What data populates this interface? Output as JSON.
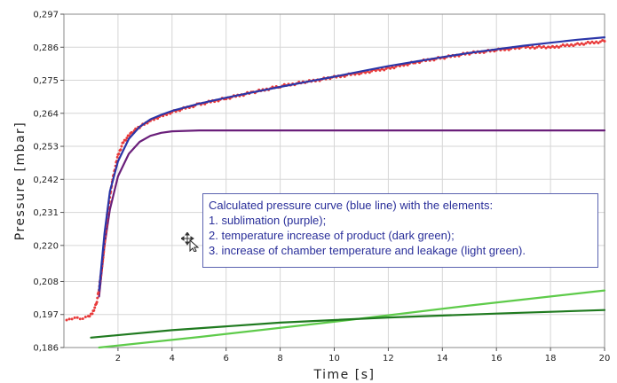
{
  "chart_data": {
    "type": "line",
    "title": "",
    "xlabel": "Time [s]",
    "ylabel": "Pressure [mbar]",
    "xlim": [
      0,
      20
    ],
    "ylim": [
      0.186,
      0.297
    ],
    "x_ticks": [
      "2",
      "4",
      "6",
      "8",
      "10",
      "12",
      "14",
      "16",
      "18",
      "20"
    ],
    "x_tick_values": [
      2,
      4,
      6,
      8,
      10,
      12,
      14,
      16,
      18,
      20
    ],
    "y_ticks": [
      "0,297",
      "0,286",
      "0,275",
      "0,264",
      "0,253",
      "0,242",
      "0,231",
      "0,220",
      "0,208",
      "0,197",
      "0,186"
    ],
    "y_tick_values": [
      0.297,
      0.286,
      0.275,
      0.264,
      0.253,
      0.242,
      0.231,
      0.22,
      0.208,
      0.197,
      0.186
    ],
    "grid": true,
    "series": [
      {
        "color": "#e83a3a",
        "style": "dots",
        "points": [
          [
            0.1,
            0.1955
          ],
          [
            0.3,
            0.1955
          ],
          [
            0.5,
            0.1956
          ],
          [
            0.7,
            0.1957
          ],
          [
            0.9,
            0.1962
          ],
          [
            1.05,
            0.1975
          ],
          [
            1.2,
            0.2005
          ],
          [
            1.3,
            0.2055
          ],
          [
            1.45,
            0.216
          ],
          [
            1.6,
            0.23
          ],
          [
            1.8,
            0.242
          ],
          [
            2.0,
            0.25
          ],
          [
            2.2,
            0.2545
          ],
          [
            2.5,
            0.2575
          ],
          [
            2.8,
            0.2595
          ],
          [
            3.2,
            0.2615
          ],
          [
            3.6,
            0.263
          ],
          [
            4.0,
            0.2645
          ],
          [
            5.0,
            0.267
          ],
          [
            6.0,
            0.269
          ],
          [
            7.0,
            0.271
          ],
          [
            8.0,
            0.273
          ],
          [
            9.0,
            0.2745
          ],
          [
            10.0,
            0.276
          ],
          [
            11.0,
            0.2775
          ],
          [
            12.0,
            0.279
          ],
          [
            13.0,
            0.281
          ],
          [
            14.0,
            0.2825
          ],
          [
            15.0,
            0.284
          ],
          [
            16.0,
            0.285
          ],
          [
            17.0,
            0.286
          ],
          [
            18.0,
            0.286
          ],
          [
            19.0,
            0.287
          ],
          [
            20.0,
            0.288
          ]
        ]
      },
      {
        "color": "#2b36a8",
        "style": "line",
        "points": [
          [
            1.3,
            0.205
          ],
          [
            1.5,
            0.224
          ],
          [
            1.7,
            0.238
          ],
          [
            2.0,
            0.248
          ],
          [
            2.4,
            0.2555
          ],
          [
            2.8,
            0.2595
          ],
          [
            3.2,
            0.262
          ],
          [
            3.6,
            0.2635
          ],
          [
            4.0,
            0.2648
          ],
          [
            5.0,
            0.2672
          ],
          [
            6.0,
            0.2692
          ],
          [
            7.0,
            0.271
          ],
          [
            8.0,
            0.2728
          ],
          [
            9.0,
            0.2745
          ],
          [
            10.0,
            0.2762
          ],
          [
            11.0,
            0.278
          ],
          [
            12.0,
            0.2797
          ],
          [
            13.0,
            0.2812
          ],
          [
            14.0,
            0.2827
          ],
          [
            15.0,
            0.2841
          ],
          [
            16.0,
            0.2853
          ],
          [
            17.0,
            0.2865
          ],
          [
            18.0,
            0.2875
          ],
          [
            19.0,
            0.2885
          ],
          [
            20.0,
            0.2893
          ]
        ]
      },
      {
        "color": "#6a1f7a",
        "style": "line",
        "points": [
          [
            1.3,
            0.203
          ],
          [
            1.5,
            0.22
          ],
          [
            1.7,
            0.232
          ],
          [
            2.0,
            0.243
          ],
          [
            2.4,
            0.2505
          ],
          [
            2.8,
            0.2545
          ],
          [
            3.2,
            0.2565
          ],
          [
            3.6,
            0.2575
          ],
          [
            4.0,
            0.258
          ],
          [
            5.0,
            0.2583
          ],
          [
            6.0,
            0.2583
          ],
          [
            10.0,
            0.2583
          ],
          [
            15.0,
            0.2583
          ],
          [
            20.0,
            0.2583
          ]
        ]
      },
      {
        "color": "#1f7a1f",
        "style": "line",
        "points": [
          [
            1.0,
            0.1893
          ],
          [
            4.0,
            0.1918
          ],
          [
            8.0,
            0.1943
          ],
          [
            12.0,
            0.196
          ],
          [
            16.0,
            0.1973
          ],
          [
            20.0,
            0.1985
          ]
        ]
      },
      {
        "color": "#5ecb4a",
        "style": "line",
        "points": [
          [
            1.3,
            0.186
          ],
          [
            5.0,
            0.1895
          ],
          [
            10.0,
            0.1946
          ],
          [
            15.0,
            0.2
          ],
          [
            20.0,
            0.205
          ]
        ]
      }
    ],
    "annotation": {
      "lines": [
        "Calculated pressure curve (blue line)  with the elements:",
        "1. sublimation (purple);",
        "2. temperature increase of product (dark green);",
        "3. increase of chamber temperature and leakage (light green)."
      ]
    }
  },
  "cursor": {
    "icon": "move-cursor-icon"
  }
}
